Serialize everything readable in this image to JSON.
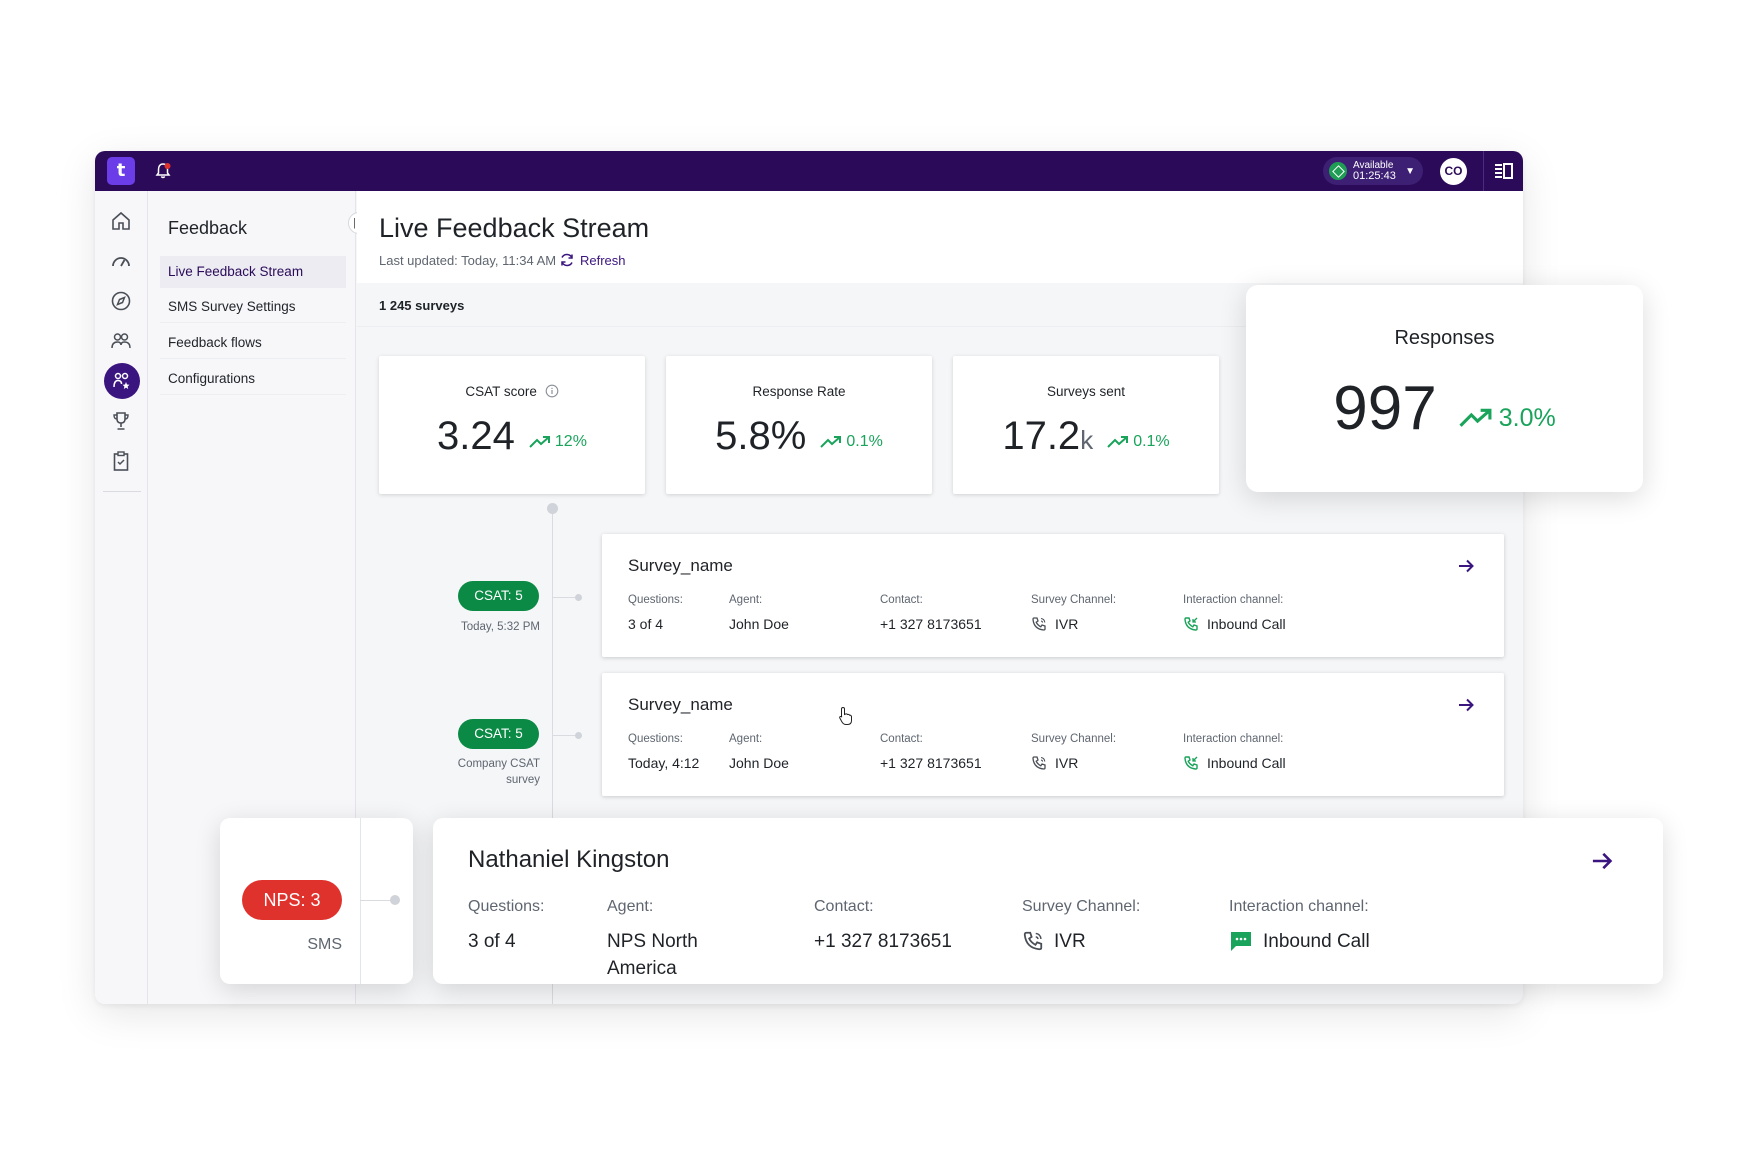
{
  "topbar": {
    "logo_text": "t",
    "status_label": "Available",
    "status_timer": "01:25:43",
    "avatar_initials": "CO"
  },
  "rail": {
    "icons": [
      "home-icon",
      "dashboard-gauge-icon",
      "compass-icon",
      "users-icon",
      "feedback-icon",
      "trophy-icon",
      "clipboard-icon"
    ],
    "active": "feedback-icon"
  },
  "nav": {
    "title": "Feedback",
    "items": [
      {
        "label": "Live Feedback Stream",
        "active": true
      },
      {
        "label": "SMS Survey Settings",
        "active": false
      },
      {
        "label": "Feedback flows",
        "active": false
      },
      {
        "label": "Configurations",
        "active": false
      }
    ]
  },
  "header": {
    "title": "Live Feedback Stream",
    "last_updated": "Last updated: Today, 11:34 AM",
    "refresh_label": "Refresh"
  },
  "summary": {
    "surveys_count": "1 245 surveys"
  },
  "stats": [
    {
      "label": "CSAT score",
      "value": "3.24",
      "unit": "",
      "trend": "12%",
      "has_info": true
    },
    {
      "label": "Response Rate",
      "value": "5.8%",
      "unit": "",
      "trend": "0.1%",
      "has_info": false
    },
    {
      "label": "Surveys sent",
      "value": "17.2",
      "unit": "k",
      "trend": "0.1%",
      "has_info": false
    }
  ],
  "responses_card": {
    "label": "Responses",
    "value": "997",
    "trend": "3.0%"
  },
  "stream": [
    {
      "badge": "CSAT: 5",
      "caption": "Today, 5:32 PM",
      "name": "Survey_name",
      "labels": {
        "questions": "Questions:",
        "agent": "Agent:",
        "contact": "Contact:",
        "survey_channel": "Survey Channel:",
        "interaction_channel": "Interaction channel:"
      },
      "questions": "3 of 4",
      "agent": "John Doe",
      "contact": "+1 327 8173651",
      "survey_channel": "IVR",
      "interaction_channel": "Inbound Call"
    },
    {
      "badge": "CSAT: 5",
      "caption": "Company CSAT survey",
      "name": "Survey_name",
      "labels": {
        "questions": "Questions:",
        "agent": "Agent:",
        "contact": "Contact:",
        "survey_channel": "Survey Channel:",
        "interaction_channel": "Interaction channel:"
      },
      "questions": "Today, 4:12",
      "agent": "John Doe",
      "contact": "+1 327 8173651",
      "survey_channel": "IVR",
      "interaction_channel": "Inbound Call"
    }
  ],
  "highlight": {
    "badge": "NPS: 3",
    "caption": "SMS",
    "name": "Nathaniel Kingston",
    "labels": {
      "questions": "Questions:",
      "agent": "Agent:",
      "contact": "Contact:",
      "survey_channel": "Survey Channel:",
      "interaction_channel": "Interaction channel:"
    },
    "questions": "3 of 4",
    "agent": "NPS North America",
    "contact": "+1 327 8173651",
    "survey_channel": "IVR",
    "interaction_channel": "Inbound Call"
  },
  "colors": {
    "topbar": "#2b0b59",
    "accent": "#3a1580",
    "positive": "#1aa35b",
    "csat_badge": "#0b8a45",
    "nps_badge": "#e0322d"
  }
}
